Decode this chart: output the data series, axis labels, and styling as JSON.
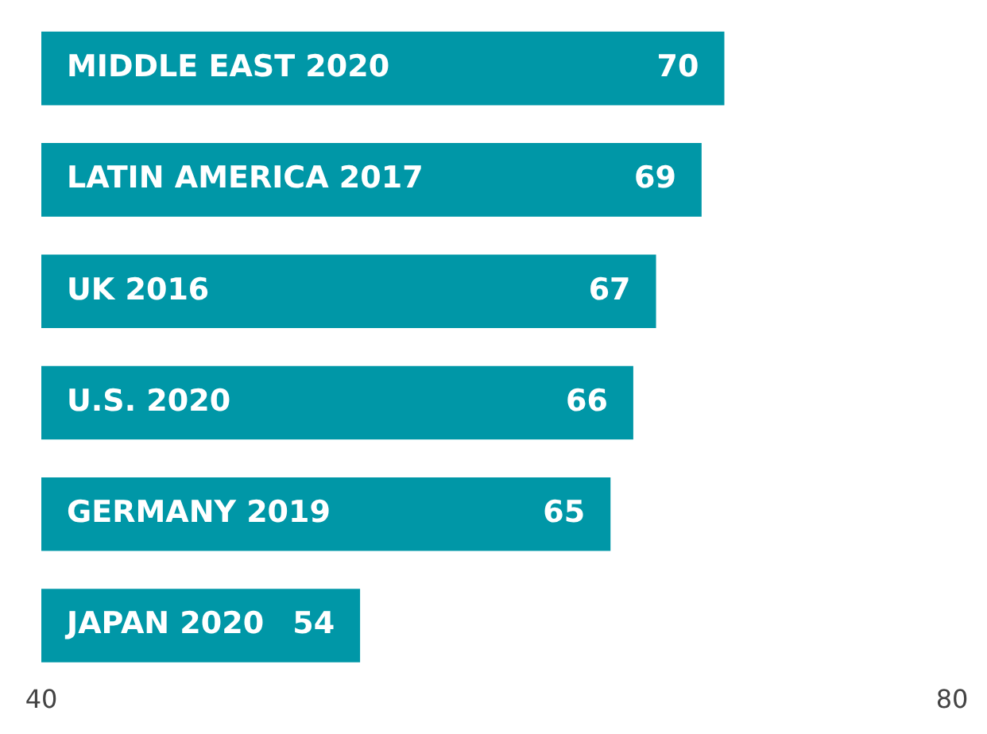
{
  "chart_data": {
    "type": "bar",
    "orientation": "horizontal",
    "categories": [
      "MIDDLE EAST 2020",
      "LATIN AMERICA 2017",
      "UK 2016",
      "U.S. 2020",
      "GERMANY 2019",
      "JAPAN 2020"
    ],
    "values": [
      70,
      69,
      67,
      66,
      65,
      54
    ],
    "color": "#0097a7",
    "xlim": [
      40,
      80
    ],
    "xticks": [
      40,
      80
    ],
    "grid": false,
    "legend": false,
    "data_labels": true
  }
}
